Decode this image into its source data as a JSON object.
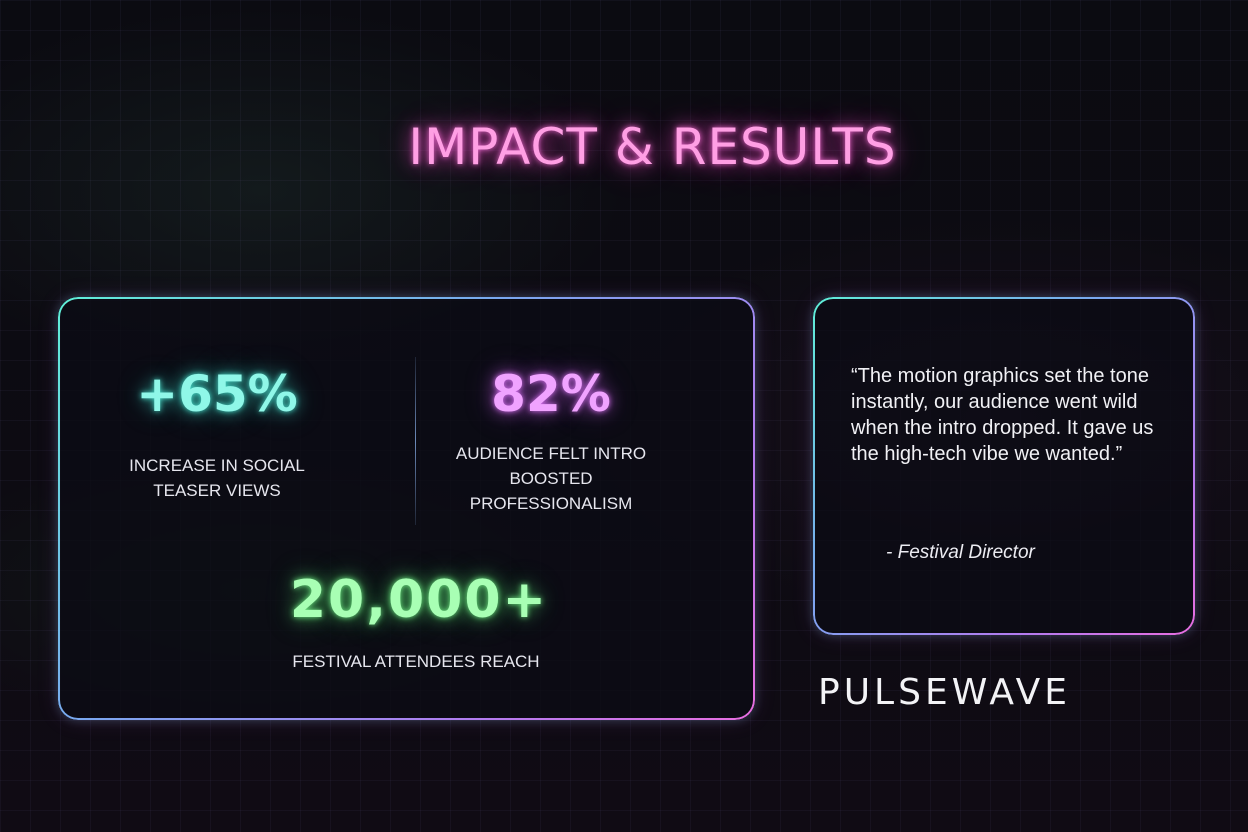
{
  "title": "IMPACT & RESULTS",
  "stats": [
    {
      "value": "+65%",
      "label": "INCREASE IN SOCIAL TEASER VIEWS",
      "color": "#8ff7e8"
    },
    {
      "value": "82%",
      "label": "AUDIENCE FELT INTRO BOOSTED PROFESSIONALISM",
      "color": "#f0a3ff"
    },
    {
      "value": "20,000+",
      "label": "FESTIVAL ATTENDEES REACH",
      "color": "#a8ffb4"
    }
  ],
  "testimonial": {
    "quote": "“The motion graphics set the tone instantly, our audience went wild when the intro dropped. It gave us the high-tech vibe we wanted.”",
    "author": "- Festival Director"
  },
  "brand": "PULSEWAVE",
  "colors": {
    "title_glow": "#ff9fe4",
    "border_start": "#5ff0d8",
    "border_end": "#e86ee0",
    "background": "#0a0a10"
  }
}
